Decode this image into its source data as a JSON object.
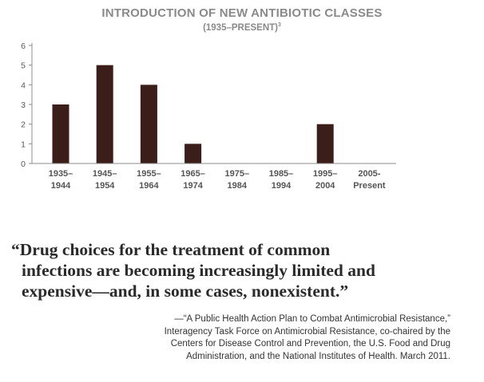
{
  "chart_data": {
    "type": "bar",
    "title": "INTRODUCTION OF NEW ANTIBIOTIC CLASSES",
    "subtitle": "(1935–PRESENT)",
    "subtitle_note": "3",
    "categories": [
      [
        "1935–",
        "1944"
      ],
      [
        "1945–",
        "1954"
      ],
      [
        "1955–",
        "1964"
      ],
      [
        "1965–",
        "1974"
      ],
      [
        "1975–",
        "1984"
      ],
      [
        "1985–",
        "1994"
      ],
      [
        "1995–",
        "2004"
      ],
      [
        "2005-",
        "Present"
      ]
    ],
    "values": [
      3,
      5,
      4,
      1,
      0,
      0,
      2,
      0
    ],
    "yticks": [
      0,
      1,
      2,
      3,
      4,
      5,
      6
    ],
    "ylim": [
      0,
      6
    ],
    "xlabel": "",
    "ylabel": "",
    "grid": false,
    "colors": {
      "bar": "#3b1e1a",
      "axis": "#8c8c8c",
      "title": "#8a8a8a"
    }
  },
  "quote": {
    "lines": [
      "“Drug choices for the treatment of common",
      "infections are becoming increasingly limited and",
      "expensive—and, in some cases, nonexistent.”"
    ]
  },
  "citation": {
    "lines": [
      "—“A Public Health Action Plan to Combat Antimicrobial Resistance,”",
      "Interagency Task Force on Antimicrobial Resistance, co-chaired by the",
      "Centers for Disease Control and Prevention, the U.S. Food and Drug",
      "Administration, and the National Institutes of Health. March 2011."
    ]
  }
}
